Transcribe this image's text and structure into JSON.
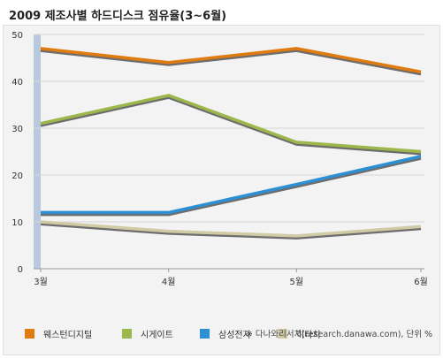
{
  "page": {
    "title": "2009 제조사별 하드디스크 점유율(3~6월)",
    "source": "※ 다나와리서치(research.danawa.com), 단위 %"
  },
  "colors": {
    "background": "#f3f3f3",
    "grid": "#d6d6d6",
    "axis_band": "#b9c9dd",
    "tick_text": "#333333"
  },
  "chart_data": {
    "type": "line",
    "title": "2009 제조사별 하드디스크 점유율(3~6월)",
    "xlabel": "",
    "ylabel": "",
    "ylim": [
      0,
      50
    ],
    "yticks": [
      0,
      10,
      20,
      30,
      40,
      50
    ],
    "categories": [
      "3월",
      "4월",
      "5월",
      "6월"
    ],
    "grid": true,
    "legend_position": "bottom",
    "series": [
      {
        "name": "웨스턴디지털",
        "color": "#e07b10",
        "values": [
          47,
          44,
          47,
          42
        ]
      },
      {
        "name": "시게이트",
        "color": "#9db84a",
        "values": [
          31,
          37,
          27,
          25
        ]
      },
      {
        "name": "삼성전자",
        "color": "#2e90d4",
        "values": [
          12,
          12,
          18,
          24
        ]
      },
      {
        "name": "히타치",
        "color": "#d0cba5",
        "values": [
          10,
          8,
          7,
          9
        ]
      }
    ]
  }
}
